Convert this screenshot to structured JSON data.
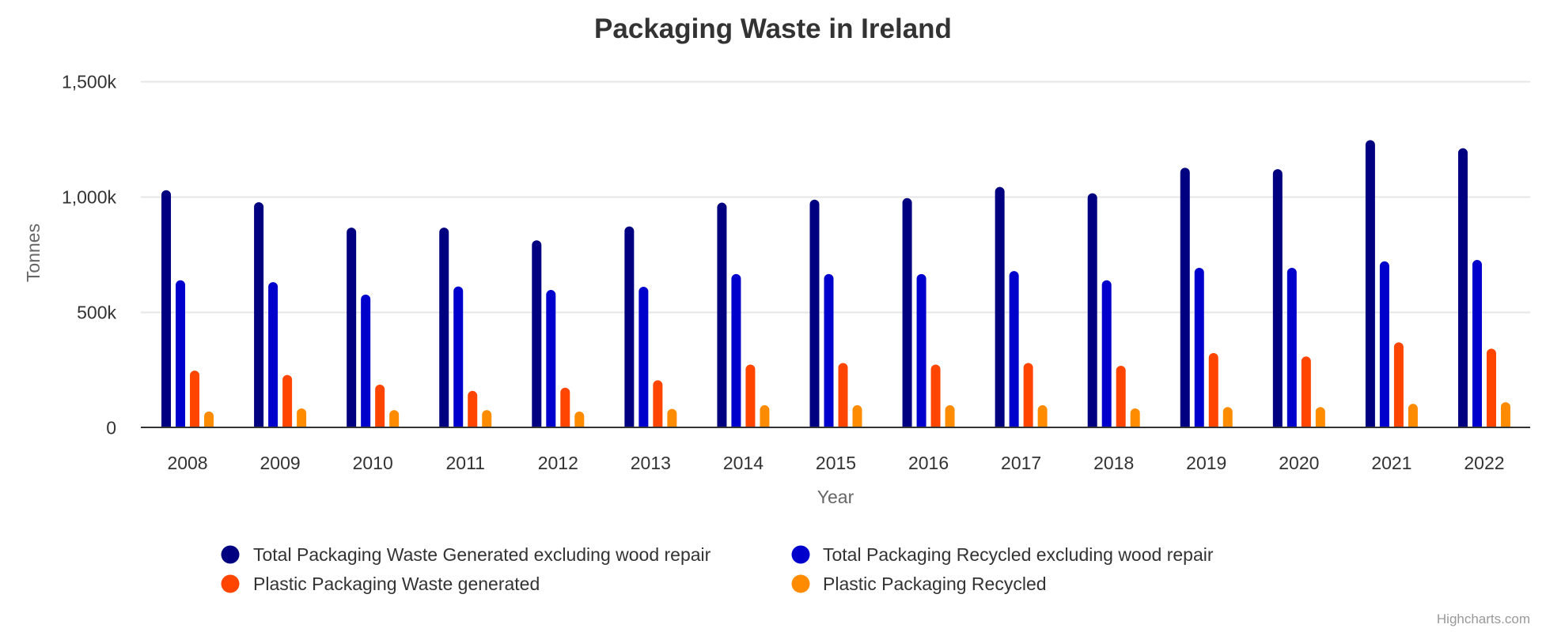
{
  "chart_data": {
    "type": "bar",
    "title": "Packaging Waste in Ireland",
    "xlabel": "Year",
    "ylabel": "Tonnes",
    "ylim": [
      0,
      1500000
    ],
    "yticks": [
      0,
      500000,
      1000000,
      1500000
    ],
    "ytick_labels": [
      "0",
      "500k",
      "1,000k",
      "1,500k"
    ],
    "grid": true,
    "legend_position": "bottom",
    "categories": [
      "2008",
      "2009",
      "2010",
      "2011",
      "2012",
      "2013",
      "2014",
      "2015",
      "2016",
      "2017",
      "2018",
      "2019",
      "2020",
      "2021",
      "2022"
    ],
    "series": [
      {
        "name": "Total Packaging Waste Generated excluding wood repair",
        "color": "#000080",
        "values": [
          1027000,
          975000,
          865000,
          865000,
          810000,
          870000,
          973000,
          986000,
          993000,
          1041000,
          1014000,
          1124000,
          1118000,
          1244000,
          1209000
        ]
      },
      {
        "name": "Total Packaging Recycled excluding wood repair",
        "color": "#0000CD",
        "values": [
          637000,
          629000,
          575000,
          610000,
          595000,
          609000,
          664000,
          664000,
          664000,
          677000,
          637000,
          691000,
          691000,
          719000,
          725000
        ]
      },
      {
        "name": "Plastic Packaging Waste generated",
        "color": "#FF4500",
        "values": [
          246000,
          227000,
          185000,
          158000,
          172000,
          204000,
          272000,
          279000,
          272000,
          279000,
          267000,
          322000,
          307000,
          368000,
          341000
        ]
      },
      {
        "name": "Plastic Packaging Recycled",
        "color": "#FF8C00",
        "values": [
          69000,
          82000,
          75000,
          75000,
          69000,
          80000,
          96000,
          96000,
          96000,
          96000,
          82000,
          88000,
          88000,
          102000,
          109000
        ]
      }
    ]
  },
  "credits": "Highcharts.com"
}
